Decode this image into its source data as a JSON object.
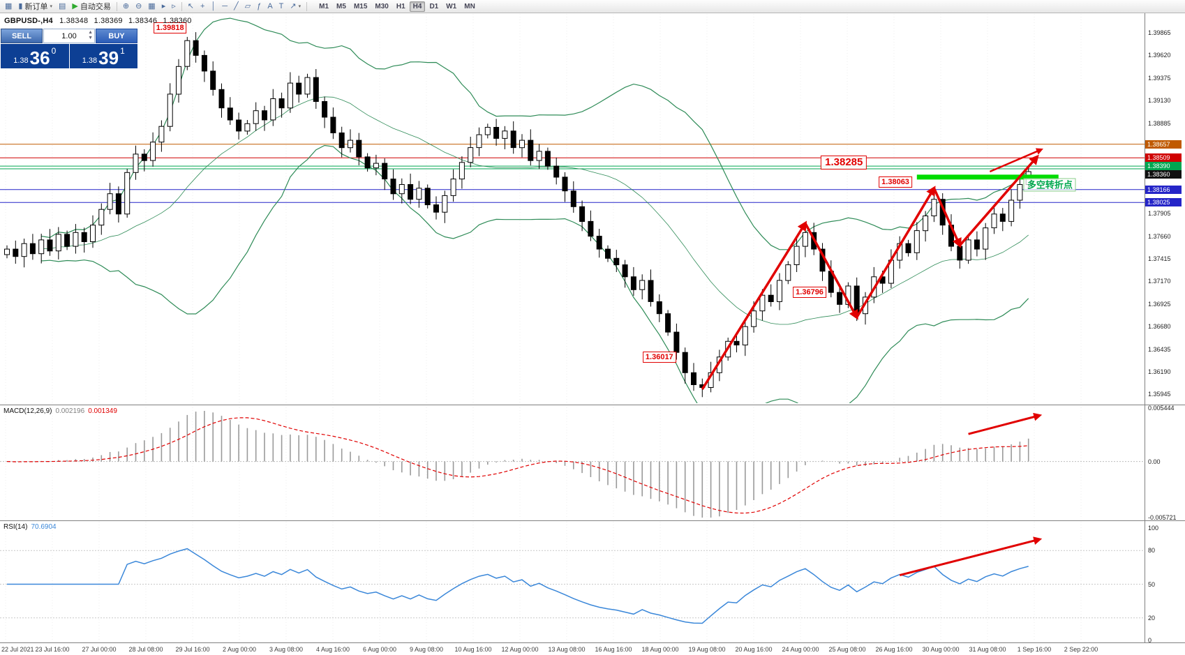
{
  "colors": {
    "arrow": "#e10000",
    "bollinger": "#2e8b57",
    "rsi_line": "#3a87d9",
    "macd_hist": "#9a9a9a",
    "macd_signal": "#e00000",
    "support": "#00dc00"
  },
  "toolbar": {
    "buttons": [
      {
        "name": "new-chart",
        "glyph": "▦"
      },
      {
        "name": "new-order",
        "glyph": "▮",
        "label": "新订单",
        "caret": true
      },
      {
        "name": "chart-window",
        "glyph": "▤"
      },
      {
        "name": "auto-trading",
        "glyph": "▶",
        "label": "自动交易",
        "glyph_color": "#2faa2f"
      },
      {
        "sep": true
      },
      {
        "name": "zoom-in",
        "glyph": "⊕"
      },
      {
        "name": "zoom-out",
        "glyph": "⊖"
      },
      {
        "name": "tile-windows",
        "glyph": "▦"
      },
      {
        "name": "auto-scroll",
        "glyph": "▸"
      },
      {
        "name": "chart-shift",
        "glyph": "▹"
      },
      {
        "sep": true
      },
      {
        "name": "cursor",
        "glyph": "↖"
      },
      {
        "name": "crosshair",
        "glyph": "+"
      },
      {
        "name": "vertical-line",
        "glyph": "│"
      },
      {
        "name": "horizontal-line",
        "glyph": "─"
      },
      {
        "name": "trendline",
        "glyph": "╱"
      },
      {
        "name": "equidistant-channel",
        "glyph": "▱"
      },
      {
        "name": "fibonacci",
        "glyph": "ƒ"
      },
      {
        "name": "text",
        "glyph": "A"
      },
      {
        "name": "text-label",
        "glyph": "T"
      },
      {
        "name": "arrows-tool",
        "glyph": "↗",
        "caret": true
      },
      {
        "sep": true
      }
    ],
    "timeframes": [
      {
        "label": "M1"
      },
      {
        "label": "M5"
      },
      {
        "label": "M15"
      },
      {
        "label": "M30"
      },
      {
        "label": "H1"
      },
      {
        "label": "H4",
        "active": true
      },
      {
        "label": "D1"
      },
      {
        "label": "W1"
      },
      {
        "label": "MN"
      }
    ]
  },
  "quote": {
    "symbol": "GBPUSD-,H4",
    "open": "1.38348",
    "high": "1.38369",
    "low": "1.38346",
    "close": "1.38360"
  },
  "trade_panel": {
    "sell_label": "SELL",
    "buy_label": "BUY",
    "volume": "1.00",
    "sell_price": {
      "figure": "1.38",
      "pips": "36",
      "point": "0"
    },
    "buy_price": {
      "figure": "1.38",
      "pips": "39",
      "point": "1"
    }
  },
  "time_axis": {
    "labels": [
      "22 Jul 2021",
      "23 Jul 16:00",
      "27 Jul 00:00",
      "28 Jul 08:00",
      "29 Jul 16:00",
      "2 Aug 00:00",
      "3 Aug 08:00",
      "4 Aug 16:00",
      "6 Aug 00:00",
      "9 Aug 08:00",
      "10 Aug 16:00",
      "12 Aug 00:00",
      "13 Aug 08:00",
      "16 Aug 16:00",
      "18 Aug 00:00",
      "19 Aug 08:00",
      "20 Aug 16:00",
      "24 Aug 00:00",
      "25 Aug 08:00",
      "26 Aug 16:00",
      "30 Aug 00:00",
      "31 Aug 08:00",
      "1 Sep 16:00",
      "2 Sep 22:00"
    ]
  },
  "chart_data": {
    "main": {
      "type": "candlestick",
      "symbol": "GBPUSD-",
      "period": "H4",
      "price_range": [
        1.358494,
        1.400843
      ],
      "first_open": 1.3746,
      "closes": [
        1.3752,
        1.3744,
        1.3758,
        1.3747,
        1.3762,
        1.375,
        1.3768,
        1.3755,
        1.377,
        1.376,
        1.3778,
        1.3795,
        1.3812,
        1.379,
        1.3835,
        1.3855,
        1.3848,
        1.3868,
        1.3885,
        1.392,
        1.395,
        1.3978,
        1.3962,
        1.3945,
        1.3925,
        1.3905,
        1.3892,
        1.388,
        1.3888,
        1.3902,
        1.3892,
        1.3915,
        1.3905,
        1.3932,
        1.392,
        1.3938,
        1.3912,
        1.3895,
        1.3878,
        1.3862,
        1.387,
        1.3852,
        1.384,
        1.3845,
        1.3828,
        1.3812,
        1.3822,
        1.3806,
        1.3818,
        1.38,
        1.3792,
        1.381,
        1.3828,
        1.3846,
        1.3862,
        1.3876,
        1.3884,
        1.3872,
        1.388,
        1.3862,
        1.387,
        1.3848,
        1.3858,
        1.3842,
        1.383,
        1.3815,
        1.3798,
        1.3782,
        1.3766,
        1.3752,
        1.3742,
        1.3735,
        1.3722,
        1.3708,
        1.3718,
        1.3695,
        1.3682,
        1.3662,
        1.364,
        1.3618,
        1.3605,
        1.3602,
        1.3618,
        1.3635,
        1.3652,
        1.3648,
        1.3668,
        1.3685,
        1.3702,
        1.3695,
        1.3718,
        1.3735,
        1.3755,
        1.377,
        1.3752,
        1.3728,
        1.3705,
        1.3692,
        1.3712,
        1.3682,
        1.37,
        1.3722,
        1.3715,
        1.374,
        1.3758,
        1.3748,
        1.3772,
        1.3788,
        1.3806,
        1.3778,
        1.3755,
        1.374,
        1.3762,
        1.3752,
        1.3775,
        1.379,
        1.3782,
        1.3805,
        1.3822,
        1.3836
      ],
      "bollinger": {
        "period": 20,
        "deviation": 2
      },
      "hlines": [
        {
          "price": 1.38657,
          "color": "#c05a00",
          "label": "1.38657"
        },
        {
          "price": 1.38509,
          "color": "#d00000",
          "label": "1.38509"
        },
        {
          "price": 1.3842,
          "color": "#00a651",
          "label": ""
        },
        {
          "price": 1.3839,
          "color": "#00a651",
          "label": "1.38390"
        },
        {
          "price": 1.38166,
          "color": "#2525c8",
          "label": "1.38166"
        },
        {
          "price": 1.38025,
          "color": "#2525c8",
          "label": "1.38025"
        }
      ],
      "price_tags": [
        {
          "text": "1.38657",
          "price": 1.38657,
          "color": "#c05a00"
        },
        {
          "text": "1.38509",
          "price": 1.38509,
          "color": "#d00000"
        },
        {
          "text": "1.38390",
          "price": 1.38418,
          "color": "#00a651"
        },
        {
          "text": "1.38360",
          "price": 1.3833,
          "color": "#101010"
        },
        {
          "text": "1.38166",
          "price": 1.38166,
          "color": "#2525c8"
        },
        {
          "text": "1.38025",
          "price": 1.38025,
          "color": "#2525c8"
        }
      ],
      "y_axis_labels": [
        "1.39865",
        "1.39620",
        "1.39375",
        "1.39130",
        "1.38885",
        "1.37905",
        "1.37660",
        "1.37415",
        "1.37170",
        "1.36925",
        "1.36680",
        "1.36435",
        "1.36190",
        "1.35945"
      ],
      "support_bar": {
        "from_bar": 106,
        "to_bar": 122.5,
        "price": 1.383,
        "color": "#00dc00"
      },
      "trend_arrows": {
        "points": [
          [
            81,
            1.36
          ],
          [
            93,
            1.378
          ],
          [
            99,
            1.3678
          ],
          [
            108,
            1.3818
          ],
          [
            111,
            1.3756
          ],
          [
            120,
            1.3852
          ]
        ],
        "extra": [
          [
            114.5,
            1.3836
          ],
          [
            120.5,
            1.386
          ]
        ]
      },
      "callouts": [
        {
          "bar": 19,
          "price": 1.3992,
          "text": "1.39818",
          "big": false
        },
        {
          "bar": 97.5,
          "price": 1.3846,
          "text": "1.38285",
          "big": true
        },
        {
          "bar": 103.5,
          "price": 1.3825,
          "text": "1.38063",
          "big": false
        },
        {
          "bar": 93.5,
          "price": 1.3705,
          "text": "1.36796",
          "big": false
        },
        {
          "bar": 76,
          "price": 1.3635,
          "text": "1.36017",
          "big": false
        }
      ],
      "note": {
        "bar": 121.5,
        "price": 1.3822,
        "text": "多空转折点"
      }
    },
    "macd": {
      "type": "histogram_line",
      "name": "MACD(12,26,9)",
      "main_value": "0.002196",
      "signal_value": "0.001349",
      "params": [
        12,
        26,
        9
      ],
      "range": [
        -0.005721,
        0.005444
      ],
      "axis_labels": [
        {
          "text": "0.005444",
          "value": 0.005444
        },
        {
          "text": "0.00",
          "value": 0
        },
        {
          "text": "-0.005721",
          "value": -0.005721
        }
      ],
      "arrow": {
        "from": [
          112,
          0.0028
        ],
        "to": [
          120.3,
          0.0047
        ]
      }
    },
    "rsi": {
      "type": "line",
      "name": "RSI(14)",
      "value": "70.6904",
      "period": 14,
      "range": [
        0,
        100
      ],
      "levels": [
        80,
        50,
        20
      ],
      "axis_labels": [
        {
          "text": "100",
          "value": 100
        },
        {
          "text": "80",
          "value": 80
        },
        {
          "text": "50",
          "value": 50
        },
        {
          "text": "20",
          "value": 20
        },
        {
          "text": "0",
          "value": 0
        }
      ],
      "arrow": {
        "from": [
          104,
          58
        ],
        "to": [
          120.3,
          90
        ]
      }
    }
  }
}
